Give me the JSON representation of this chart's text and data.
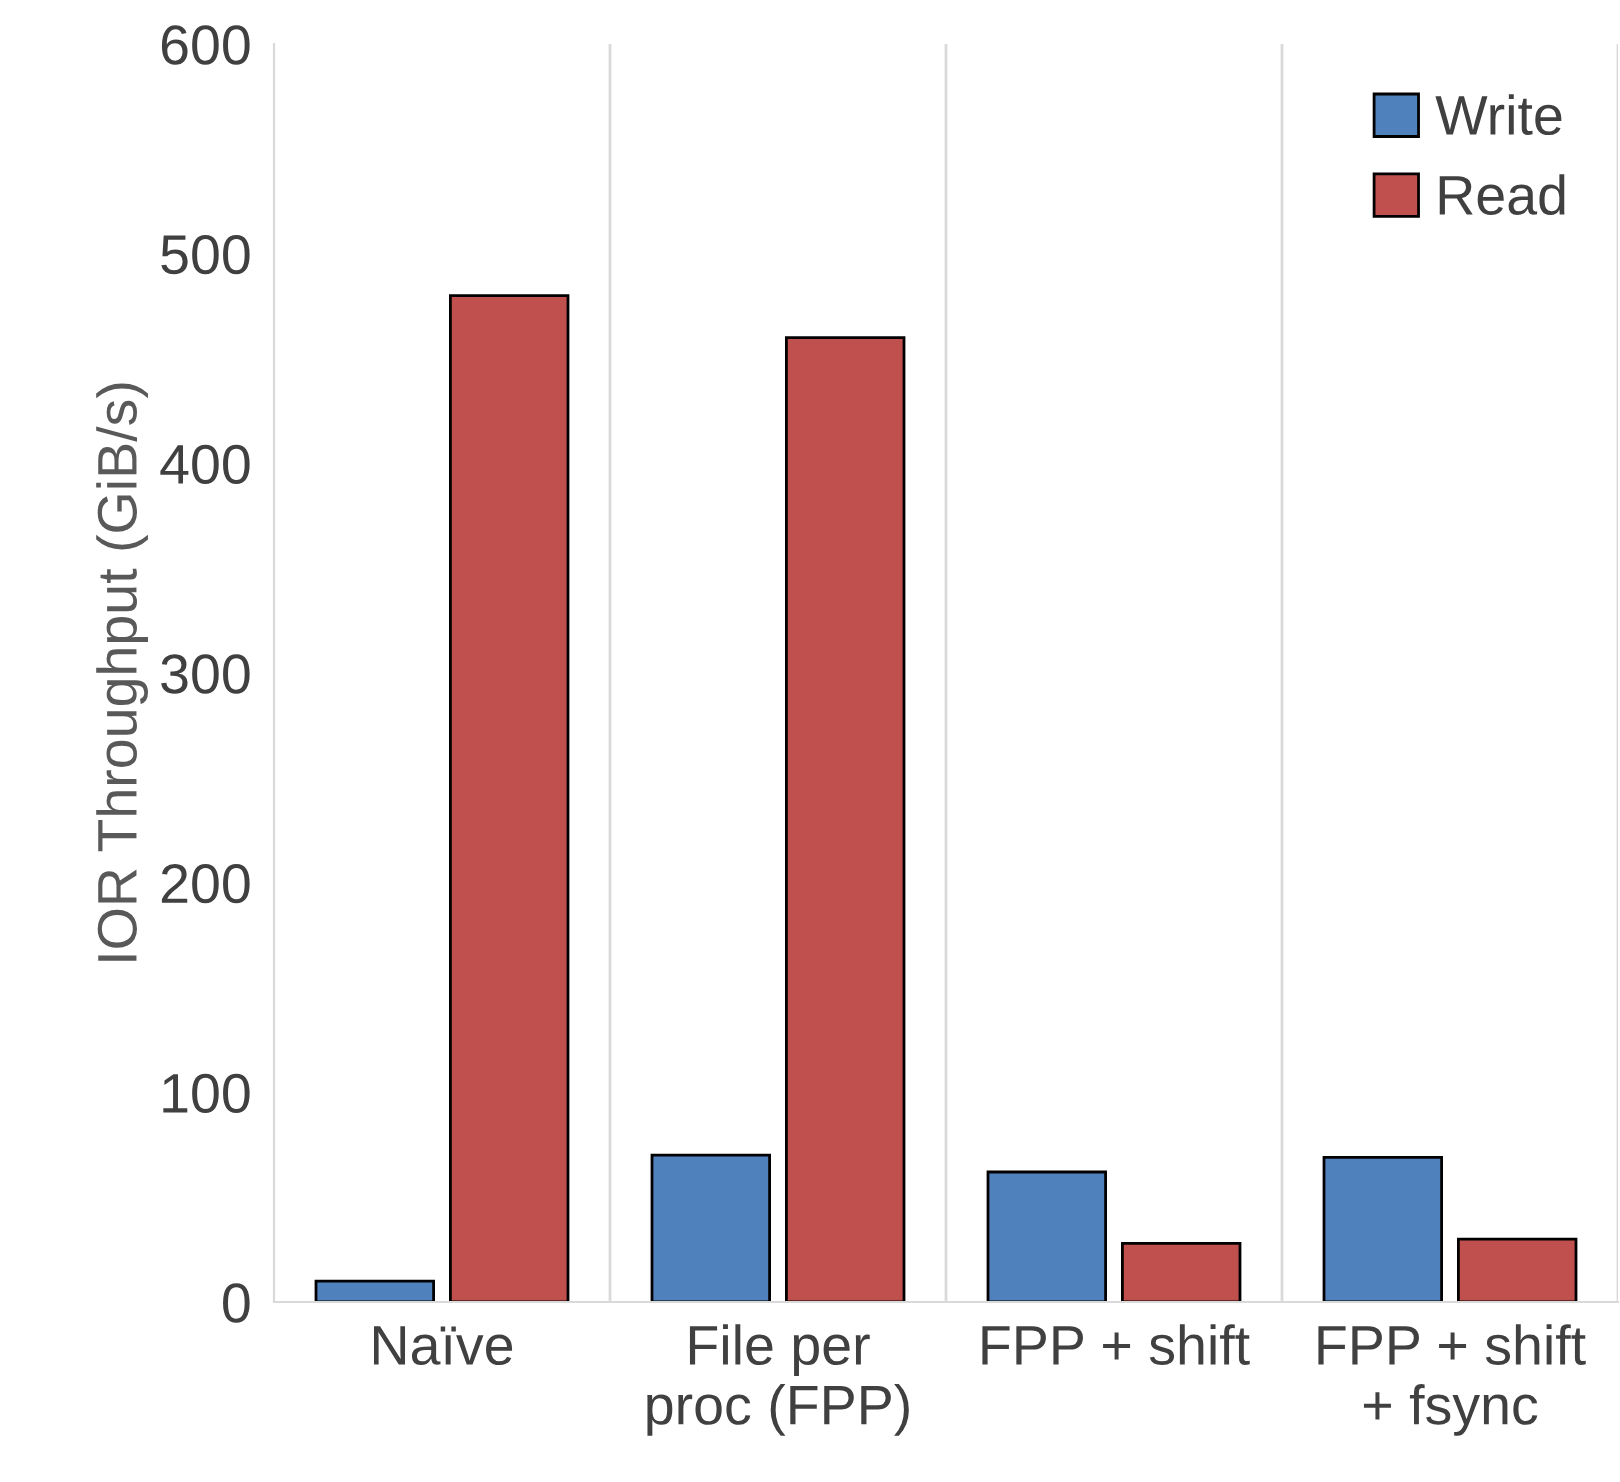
{
  "chart_data": {
    "type": "bar",
    "ylabel": "IOR Throughput (GiB/s)",
    "categories": [
      "Naïve",
      "File per\nproc (FPP)",
      "FPP + shift",
      "FPP + shift\n+ fsync"
    ],
    "series": [
      {
        "name": "Write",
        "color": "#4f81bd",
        "values": [
          10,
          70,
          62,
          69
        ]
      },
      {
        "name": "Read",
        "color": "#c0504d",
        "values": [
          480,
          460,
          28,
          30
        ]
      }
    ],
    "ylim": [
      0,
      600
    ],
    "yticks": [
      0,
      100,
      200,
      300,
      400,
      500,
      600
    ],
    "grid": "x",
    "legend": "top right"
  }
}
